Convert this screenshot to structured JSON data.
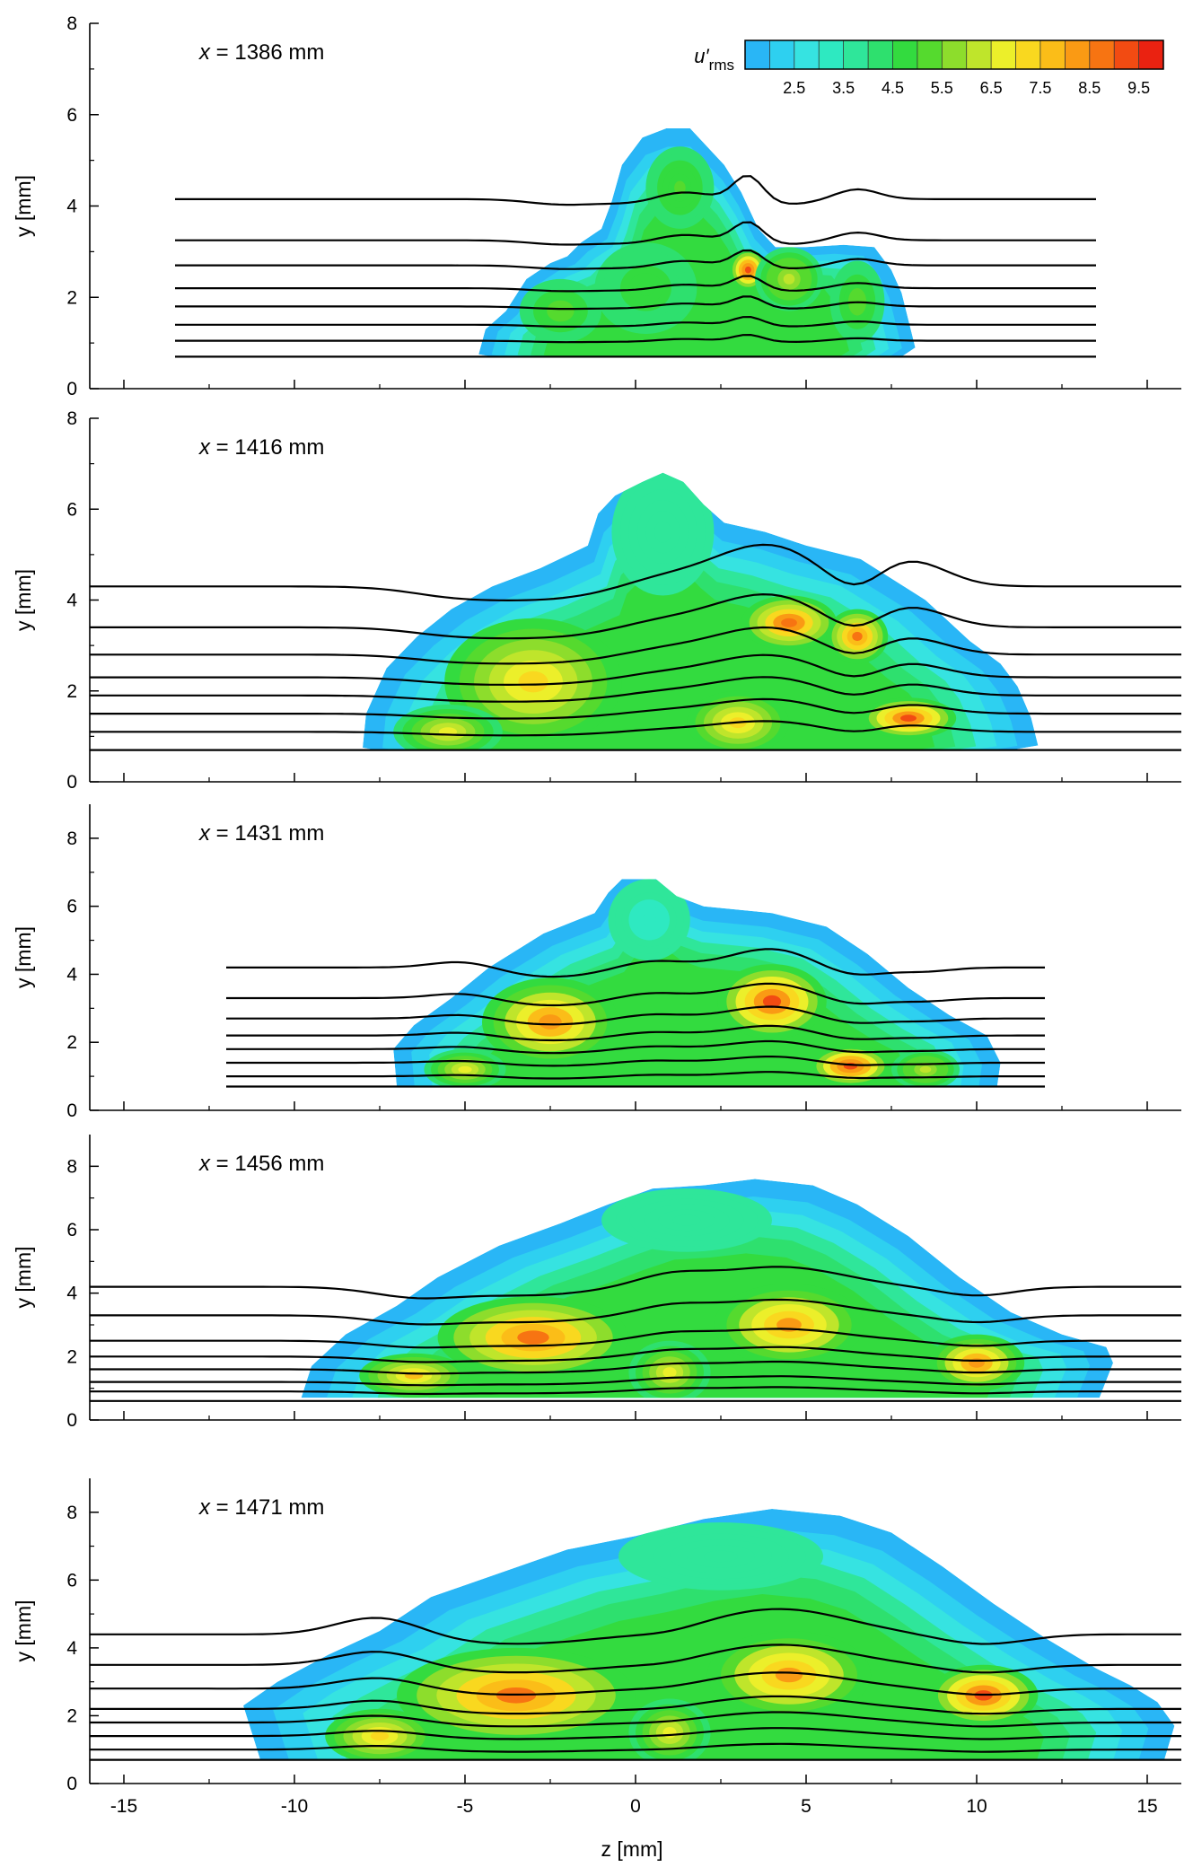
{
  "chart_data": {
    "type": "contour",
    "colorbar": {
      "title": "u′",
      "title_subscript": "rms",
      "tick_labels": [
        "2.5",
        "3.5",
        "4.5",
        "5.5",
        "6.5",
        "7.5",
        "8.5",
        "9.5"
      ],
      "levels": [
        1.5,
        2.0,
        2.5,
        3.0,
        3.5,
        4.0,
        4.5,
        5.0,
        5.5,
        6.0,
        6.5,
        7.0,
        7.5,
        8.0,
        8.5,
        9.0,
        9.5,
        10.0
      ],
      "colors": [
        "#29b6f6",
        "#2ed0f0",
        "#36e3e1",
        "#2ee9c1",
        "#2fe69a",
        "#2ee06e",
        "#33db3f",
        "#55da2e",
        "#8ddd2c",
        "#bfe52b",
        "#ecef2a",
        "#f9d81f",
        "#fbbd18",
        "#fa9a14",
        "#f77412",
        "#f24b12",
        "#ea2211"
      ]
    },
    "xlabel": "z [mm]",
    "ylabel": "y [mm]",
    "xlim": [
      -16,
      16
    ],
    "x_ticks": [
      "-15",
      "-10",
      "-5",
      "0",
      "5",
      "10",
      "15"
    ],
    "panels": [
      {
        "label_prefix": "x",
        "label_text": " = 1386 mm",
        "ylim": [
          0,
          8
        ],
        "y_ticks": [
          "0",
          "2",
          "4",
          "6",
          "8"
        ],
        "line_range": [
          -13.5,
          13.5
        ],
        "line_levels": [
          0.7,
          1.05,
          1.4,
          1.8,
          2.2,
          2.7,
          3.25,
          4.15
        ],
        "outline": [
          [
            -4.6,
            0.75
          ],
          [
            -4.4,
            1.3
          ],
          [
            -3.8,
            1.7
          ],
          [
            -3.2,
            2.4
          ],
          [
            -2.5,
            2.75
          ],
          [
            -2.0,
            2.9
          ],
          [
            -1.6,
            3.2
          ],
          [
            -1.0,
            3.5
          ],
          [
            -0.7,
            4.1
          ],
          [
            -0.4,
            4.9
          ],
          [
            0.2,
            5.5
          ],
          [
            0.9,
            5.7
          ],
          [
            1.6,
            5.7
          ],
          [
            2.1,
            5.3
          ],
          [
            2.6,
            4.9
          ],
          [
            3.1,
            4.3
          ],
          [
            3.6,
            3.5
          ],
          [
            4.1,
            3.1
          ],
          [
            5.0,
            3.1
          ],
          [
            6.1,
            3.15
          ],
          [
            7.0,
            3.1
          ],
          [
            7.5,
            2.6
          ],
          [
            7.8,
            2.1
          ],
          [
            8.0,
            1.5
          ],
          [
            8.2,
            0.9
          ],
          [
            7.8,
            0.7
          ],
          [
            -4.2,
            0.7
          ]
        ],
        "blobs": [
          {
            "z": 1.3,
            "y": 4.4,
            "rz": 1.0,
            "ry": 0.9,
            "u": 5.0
          },
          {
            "z": -2.2,
            "y": 1.7,
            "rz": 1.2,
            "ry": 0.7,
            "u": 5.4
          },
          {
            "z": 3.3,
            "y": 2.6,
            "rz": 0.55,
            "ry": 0.45,
            "u": 9.3
          },
          {
            "z": 4.5,
            "y": 2.4,
            "rz": 1.0,
            "ry": 0.7,
            "u": 6.0
          },
          {
            "z": 6.5,
            "y": 1.9,
            "rz": 0.8,
            "ry": 0.9,
            "u": 5.2
          },
          {
            "z": 0.3,
            "y": 2.2,
            "rz": 1.5,
            "ry": 1.0,
            "u": 4.8
          }
        ]
      },
      {
        "label_prefix": "x",
        "label_text": " = 1416 mm",
        "ylim": [
          0,
          8
        ],
        "y_ticks": [
          "0",
          "2",
          "4",
          "6",
          "8"
        ],
        "line_range": [
          -16,
          16
        ],
        "line_levels": [
          0.7,
          1.1,
          1.5,
          1.9,
          2.3,
          2.8,
          3.4,
          4.3
        ],
        "outline": [
          [
            -8.0,
            0.75
          ],
          [
            -7.9,
            1.5
          ],
          [
            -7.3,
            2.5
          ],
          [
            -6.4,
            3.2
          ],
          [
            -5.4,
            3.8
          ],
          [
            -4.2,
            4.3
          ],
          [
            -2.8,
            4.7
          ],
          [
            -1.4,
            5.2
          ],
          [
            -1.1,
            5.9
          ],
          [
            -0.6,
            6.3
          ],
          [
            0.2,
            6.6
          ],
          [
            0.8,
            6.8
          ],
          [
            1.4,
            6.6
          ],
          [
            2.0,
            6.1
          ],
          [
            2.6,
            5.7
          ],
          [
            3.8,
            5.5
          ],
          [
            5.0,
            5.2
          ],
          [
            6.6,
            4.9
          ],
          [
            8.5,
            4.0
          ],
          [
            9.8,
            3.1
          ],
          [
            10.7,
            2.6
          ],
          [
            11.2,
            2.1
          ],
          [
            11.6,
            1.4
          ],
          [
            11.8,
            0.8
          ],
          [
            11.0,
            0.7
          ],
          [
            -7.6,
            0.7
          ]
        ],
        "blobs": [
          {
            "z": 0.8,
            "y": 5.5,
            "rz": 1.5,
            "ry": 1.4,
            "u": 3.6
          },
          {
            "z": -3.0,
            "y": 2.2,
            "rz": 2.6,
            "ry": 1.4,
            "u": 7.3
          },
          {
            "z": 4.5,
            "y": 3.5,
            "rz": 1.4,
            "ry": 0.6,
            "u": 8.8
          },
          {
            "z": 6.5,
            "y": 3.2,
            "rz": 0.9,
            "ry": 0.6,
            "u": 8.5
          },
          {
            "z": 8.0,
            "y": 1.4,
            "rz": 1.4,
            "ry": 0.45,
            "u": 9.0
          },
          {
            "z": -5.5,
            "y": 1.1,
            "rz": 1.6,
            "ry": 0.6,
            "u": 6.8
          },
          {
            "z": 3.0,
            "y": 1.3,
            "rz": 1.5,
            "ry": 0.7,
            "u": 7.4
          }
        ]
      },
      {
        "label_prefix": "x",
        "label_text": " = 1431 mm",
        "ylim": [
          0,
          9
        ],
        "y_ticks": [
          "0",
          "2",
          "4",
          "6",
          "8"
        ],
        "line_range": [
          -12,
          12
        ],
        "line_levels": [
          0.7,
          1.0,
          1.4,
          1.8,
          2.2,
          2.7,
          3.3,
          4.2
        ],
        "outline": [
          [
            -7.0,
            0.7
          ],
          [
            -7.1,
            1.8
          ],
          [
            -6.5,
            2.5
          ],
          [
            -5.4,
            3.3
          ],
          [
            -4.3,
            4.2
          ],
          [
            -2.7,
            5.2
          ],
          [
            -1.2,
            5.8
          ],
          [
            -0.8,
            6.4
          ],
          [
            -0.4,
            6.8
          ],
          [
            0.6,
            6.8
          ],
          [
            1.2,
            6.3
          ],
          [
            2.0,
            6.0
          ],
          [
            4.0,
            5.8
          ],
          [
            5.6,
            5.4
          ],
          [
            6.8,
            4.6
          ],
          [
            8.0,
            3.6
          ],
          [
            9.2,
            2.8
          ],
          [
            10.3,
            2.2
          ],
          [
            10.7,
            1.4
          ],
          [
            10.6,
            0.7
          ]
        ],
        "blobs": [
          {
            "z": 0.4,
            "y": 5.6,
            "rz": 1.2,
            "ry": 1.2,
            "u": 3.2
          },
          {
            "z": -2.5,
            "y": 2.6,
            "rz": 2.0,
            "ry": 1.3,
            "u": 8.3
          },
          {
            "z": 4.0,
            "y": 3.2,
            "rz": 1.6,
            "ry": 1.1,
            "u": 9.0
          },
          {
            "z": 6.3,
            "y": 1.3,
            "rz": 1.2,
            "ry": 0.6,
            "u": 9.3
          },
          {
            "z": -5.0,
            "y": 1.2,
            "rz": 1.2,
            "ry": 0.6,
            "u": 6.5
          },
          {
            "z": 8.5,
            "y": 1.2,
            "rz": 1.0,
            "ry": 0.6,
            "u": 6.0
          }
        ]
      },
      {
        "label_prefix": "x",
        "label_text": " = 1456 mm",
        "ylim": [
          0,
          9
        ],
        "y_ticks": [
          "0",
          "2",
          "4",
          "6",
          "8"
        ],
        "line_range": [
          -16,
          16
        ],
        "line_levels": [
          0.6,
          0.9,
          1.2,
          1.6,
          2.0,
          2.5,
          3.3,
          4.2
        ],
        "outline": [
          [
            -9.8,
            0.7
          ],
          [
            -9.5,
            1.7
          ],
          [
            -8.5,
            2.7
          ],
          [
            -7.0,
            3.6
          ],
          [
            -5.8,
            4.5
          ],
          [
            -4.0,
            5.5
          ],
          [
            -2.2,
            6.2
          ],
          [
            -0.8,
            6.8
          ],
          [
            0.5,
            7.3
          ],
          [
            2.0,
            7.4
          ],
          [
            3.5,
            7.6
          ],
          [
            5.2,
            7.4
          ],
          [
            6.5,
            6.8
          ],
          [
            8.0,
            5.8
          ],
          [
            9.5,
            4.5
          ],
          [
            11.0,
            3.4
          ],
          [
            12.5,
            2.7
          ],
          [
            13.8,
            2.3
          ],
          [
            14.0,
            1.8
          ],
          [
            13.6,
            0.7
          ]
        ],
        "blobs": [
          {
            "z": 1.5,
            "y": 6.3,
            "rz": 2.5,
            "ry": 1.0,
            "u": 3.5
          },
          {
            "z": -3.0,
            "y": 2.6,
            "rz": 2.8,
            "ry": 1.3,
            "u": 8.5
          },
          {
            "z": 4.5,
            "y": 3.0,
            "rz": 2.2,
            "ry": 1.3,
            "u": 8.0
          },
          {
            "z": 10.0,
            "y": 1.8,
            "rz": 1.4,
            "ry": 0.9,
            "u": 8.3
          },
          {
            "z": 1.0,
            "y": 1.5,
            "rz": 1.2,
            "ry": 1.0,
            "u": 6.5
          },
          {
            "z": -6.5,
            "y": 1.4,
            "rz": 1.6,
            "ry": 0.7,
            "u": 7.5
          }
        ]
      },
      {
        "label_prefix": "x",
        "label_text": " = 1471 mm",
        "ylim": [
          0,
          9
        ],
        "y_ticks": [
          "0",
          "2",
          "4",
          "6",
          "8"
        ],
        "line_range": [
          -16,
          16
        ],
        "line_levels": [
          0.7,
          1.0,
          1.4,
          1.8,
          2.2,
          2.8,
          3.5,
          4.4
        ],
        "outline": [
          [
            -11.0,
            0.7
          ],
          [
            -11.5,
            2.3
          ],
          [
            -10.5,
            3.0
          ],
          [
            -9.0,
            3.8
          ],
          [
            -7.5,
            4.5
          ],
          [
            -6.0,
            5.5
          ],
          [
            -4.0,
            6.2
          ],
          [
            -2.0,
            6.9
          ],
          [
            0.0,
            7.3
          ],
          [
            2.0,
            7.8
          ],
          [
            4.0,
            8.1
          ],
          [
            6.0,
            7.9
          ],
          [
            7.5,
            7.4
          ],
          [
            9.0,
            6.4
          ],
          [
            10.5,
            5.3
          ],
          [
            12.0,
            4.3
          ],
          [
            13.5,
            3.4
          ],
          [
            14.5,
            2.9
          ],
          [
            15.3,
            2.4
          ],
          [
            15.8,
            1.7
          ],
          [
            15.5,
            0.7
          ]
        ],
        "blobs": [
          {
            "z": 2.5,
            "y": 6.7,
            "rz": 3.0,
            "ry": 1.0,
            "u": 3.5
          },
          {
            "z": -3.5,
            "y": 2.6,
            "rz": 3.5,
            "ry": 1.4,
            "u": 8.6
          },
          {
            "z": 4.5,
            "y": 3.2,
            "rz": 2.4,
            "ry": 1.3,
            "u": 8.0
          },
          {
            "z": 10.2,
            "y": 2.6,
            "rz": 1.6,
            "ry": 0.9,
            "u": 9.2
          },
          {
            "z": -7.5,
            "y": 1.4,
            "rz": 1.6,
            "ry": 0.8,
            "u": 7.2
          },
          {
            "z": 1.0,
            "y": 1.5,
            "rz": 1.2,
            "ry": 1.0,
            "u": 6.5
          }
        ]
      }
    ]
  }
}
